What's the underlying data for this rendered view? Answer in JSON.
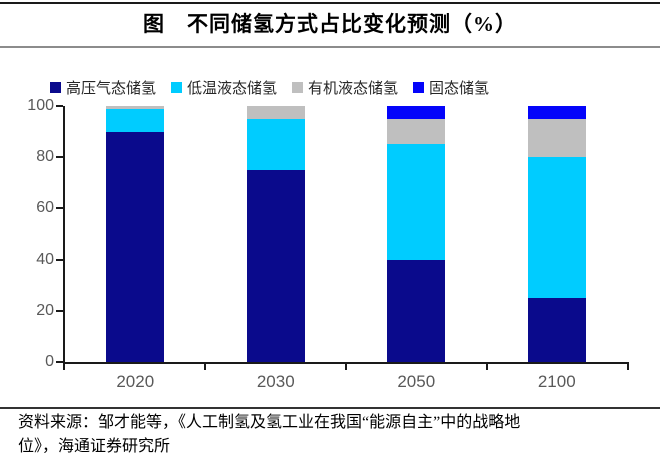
{
  "header": {
    "title": "图　不同储氢方式占比变化预测（%）"
  },
  "chart_data": {
    "type": "bar",
    "stacked": true,
    "title": "不同储氢方式占比变化预测（%）",
    "categories": [
      "2020",
      "2030",
      "2050",
      "2100"
    ],
    "series": [
      {
        "name": "高压气态储氢",
        "color": "#0a0a8c",
        "values": [
          90,
          75,
          40,
          25
        ]
      },
      {
        "name": "低温液态储氢",
        "color": "#00ccff",
        "values": [
          9,
          20,
          45,
          55
        ]
      },
      {
        "name": "有机液态储氢",
        "color": "#bfbfbf",
        "values": [
          1,
          5,
          10,
          15
        ]
      },
      {
        "name": "固态储氢",
        "color": "#0404fa",
        "values": [
          0,
          0,
          5,
          5
        ]
      }
    ],
    "xlabel": "",
    "ylabel": "",
    "ylim": [
      0,
      100
    ],
    "yticks": [
      0,
      20,
      40,
      60,
      80,
      100
    ],
    "grid": false,
    "legend_position": "top"
  },
  "footer": {
    "source_line1": "资料来源：邹才能等，《人工制氢及氢工业在我国“能源自主”中的战略地",
    "source_line2": "位》，海通证券研究所"
  }
}
